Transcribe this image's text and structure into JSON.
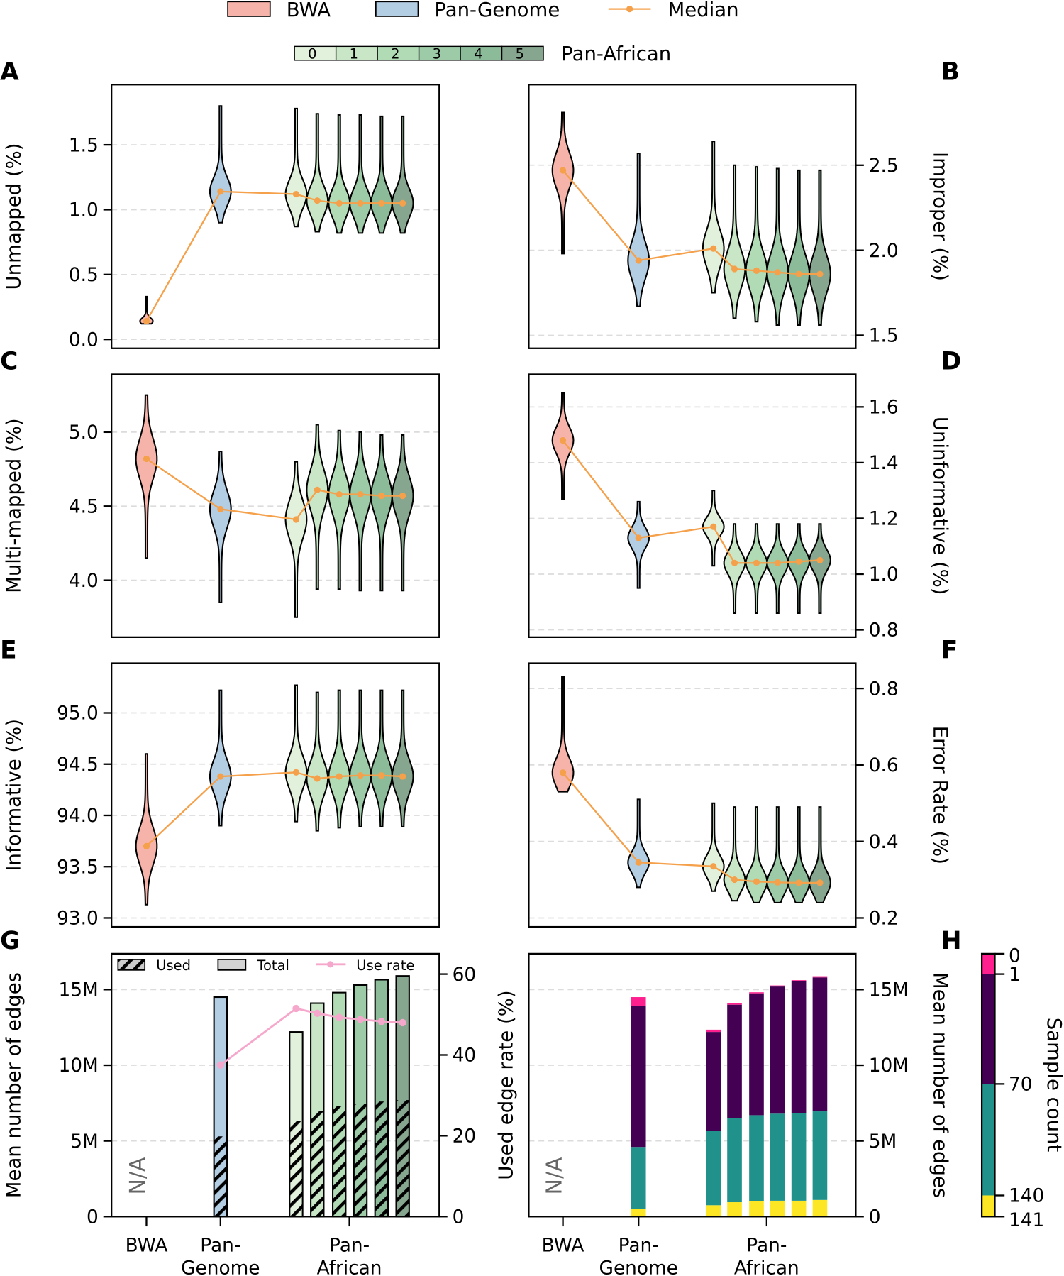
{
  "legend": {
    "items": [
      {
        "label": "BWA",
        "color": "#f6b3aa",
        "kind": "patch"
      },
      {
        "label": "Pan-Genome",
        "color": "#b3cde3",
        "kind": "patch"
      },
      {
        "label": "Median",
        "color": "#f5a04a",
        "kind": "line-marker"
      }
    ],
    "pan_african_scale": {
      "ticks": [
        "0",
        "1",
        "2",
        "3",
        "4",
        "5"
      ],
      "label": "Pan-African"
    }
  },
  "colors": {
    "BWA": "#f6b3aa",
    "Pan-Genome": "#b3cde3",
    "Pan-African": [
      "#e2f1dc",
      "#c9e7c6",
      "#b1dbb5",
      "#9dcba8",
      "#8cbb9a",
      "#87a68f"
    ],
    "median": "#f5a04a",
    "use_rate": "#f6a8cc",
    "sample_count": {
      "0-1": "#ff1f8e",
      "1-70": "#440154",
      "70-140": "#21918c",
      "140-141": "#fde725"
    }
  },
  "categories": [
    "BWA",
    "Pan-Genome",
    "Pan-African 0",
    "Pan-African 1",
    "Pan-African 2",
    "Pan-African 3",
    "Pan-African 4",
    "Pan-African 5"
  ],
  "chart_data": [
    {
      "panel": "A",
      "type": "violin",
      "ylabel": "Unmapped (%)",
      "yticks": [
        "0.0",
        "0.5",
        "1.0",
        "1.5"
      ],
      "grid": true,
      "median": [
        0.14,
        1.14,
        1.12,
        1.07,
        1.05,
        1.05,
        1.05,
        1.05
      ],
      "min": [
        0.12,
        0.9,
        0.87,
        0.83,
        0.82,
        0.82,
        0.82,
        0.82
      ],
      "max": [
        0.33,
        1.8,
        1.78,
        1.74,
        1.73,
        1.73,
        1.72,
        1.72
      ]
    },
    {
      "panel": "B",
      "type": "violin",
      "ylabel": "Improper (%)",
      "yticks": [
        "1.5",
        "2.0",
        "2.5"
      ],
      "grid": true,
      "median": [
        2.47,
        1.94,
        2.01,
        1.89,
        1.88,
        1.87,
        1.86,
        1.86
      ],
      "min": [
        1.98,
        1.67,
        1.75,
        1.6,
        1.58,
        1.56,
        1.56,
        1.56
      ],
      "max": [
        2.81,
        2.57,
        2.64,
        2.5,
        2.49,
        2.48,
        2.47,
        2.47
      ]
    },
    {
      "panel": "C",
      "type": "violin",
      "ylabel": "Multi-mapped (%)",
      "yticks": [
        "4.0",
        "4.5",
        "5.0"
      ],
      "grid": true,
      "median": [
        4.82,
        4.48,
        4.41,
        4.61,
        4.58,
        4.58,
        4.57,
        4.57
      ],
      "min": [
        4.15,
        3.85,
        3.75,
        3.94,
        3.94,
        3.93,
        3.93,
        3.93
      ],
      "max": [
        5.25,
        4.87,
        4.8,
        5.05,
        5.01,
        5.0,
        4.98,
        4.98
      ]
    },
    {
      "panel": "D",
      "type": "violin",
      "ylabel": "Uninformative (%)",
      "yticks": [
        "0.8",
        "1.0",
        "1.2",
        "1.4",
        "1.6"
      ],
      "grid": true,
      "median": [
        1.48,
        1.13,
        1.17,
        1.04,
        1.04,
        1.04,
        1.045,
        1.05
      ],
      "min": [
        1.27,
        0.95,
        1.03,
        0.86,
        0.86,
        0.86,
        0.86,
        0.86
      ],
      "max": [
        1.65,
        1.26,
        1.3,
        1.18,
        1.18,
        1.18,
        1.18,
        1.18
      ]
    },
    {
      "panel": "E",
      "type": "violin",
      "ylabel": "Informative (%)",
      "yticks": [
        "93.0",
        "93.5",
        "94.0",
        "94.5",
        "95.0"
      ],
      "grid": true,
      "median": [
        93.7,
        94.38,
        94.42,
        94.36,
        94.38,
        94.39,
        94.39,
        94.38
      ],
      "min": [
        93.13,
        93.9,
        93.94,
        93.85,
        93.88,
        93.89,
        93.89,
        93.89
      ],
      "max": [
        94.6,
        95.22,
        95.27,
        95.2,
        95.22,
        95.22,
        95.22,
        95.22
      ]
    },
    {
      "panel": "F",
      "type": "violin",
      "ylabel": "Error Rate (%)",
      "yticks": [
        "0.2",
        "0.4",
        "0.6",
        "0.8"
      ],
      "grid": true,
      "median": [
        0.58,
        0.345,
        0.335,
        0.3,
        0.295,
        0.293,
        0.292,
        0.292
      ],
      "min": [
        0.53,
        0.28,
        0.27,
        0.245,
        0.24,
        0.24,
        0.24,
        0.24
      ],
      "max": [
        0.83,
        0.51,
        0.5,
        0.49,
        0.49,
        0.49,
        0.49,
        0.49
      ]
    },
    {
      "panel": "G",
      "type": "bar",
      "ylabel": "Mean number of edges",
      "y2label": "Used edge rate (%)",
      "yticks": [
        "0",
        "5M",
        "10M",
        "15M"
      ],
      "y2ticks": [
        "0",
        "20",
        "40",
        "60"
      ],
      "grid": true,
      "legend": {
        "used": "Used",
        "total": "Total",
        "rate": "Use rate"
      },
      "na_label": "N/A",
      "xticklabels": [
        "BWA",
        "Pan-\nGenome",
        "Pan-\nAfrican"
      ],
      "total_millions": [
        null,
        14.5,
        12.2,
        14.1,
        14.8,
        15.3,
        15.65,
        15.9
      ],
      "used_millions": [
        null,
        5.3,
        6.3,
        7.0,
        7.3,
        7.45,
        7.6,
        7.7
      ],
      "use_rate_percent": [
        null,
        37.5,
        51.5,
        50.3,
        49.3,
        48.8,
        48.3,
        48.0
      ]
    },
    {
      "panel": "H",
      "type": "stacked-bar",
      "ylabel": "Mean number of edges",
      "yticks": [
        "0",
        "5M",
        "10M",
        "15M"
      ],
      "grid": true,
      "na_label": "N/A",
      "xticklabels": [
        "BWA",
        "Pan-\nGenome",
        "Pan-\nAfrican"
      ],
      "colorbar": {
        "label": "Sample count",
        "ticks": [
          "0",
          "1",
          "70",
          "140",
          "141"
        ]
      },
      "stack_order": [
        "140-141",
        "70-140",
        "1-70",
        "0-1"
      ],
      "stacks_millions": [
        null,
        [
          0.5,
          4.1,
          9.3,
          0.6
        ],
        [
          0.75,
          4.9,
          6.55,
          0.15
        ],
        [
          0.95,
          5.55,
          7.5,
          0.1
        ],
        [
          1.0,
          5.7,
          8.05,
          0.07
        ],
        [
          1.05,
          5.75,
          8.4,
          0.07
        ],
        [
          1.05,
          5.8,
          8.7,
          0.07
        ],
        [
          1.1,
          5.85,
          8.85,
          0.08
        ]
      ]
    }
  ]
}
